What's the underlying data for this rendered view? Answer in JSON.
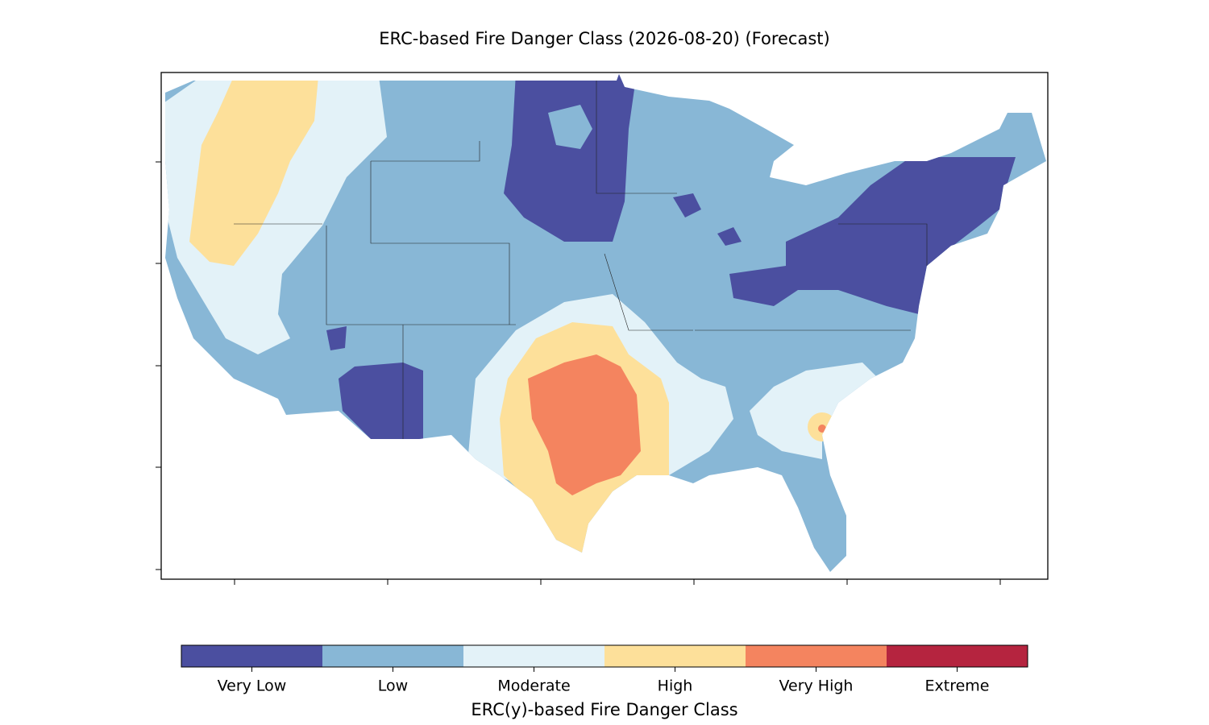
{
  "title": "ERC-based Fire Danger Class (2026-08-20) (Forecast)",
  "colorbar": {
    "label": "ERC(y)-based Fire Danger Class",
    "classes": [
      {
        "name": "Very Low",
        "color": "#4b4fa0"
      },
      {
        "name": "Low",
        "color": "#88b7d6"
      },
      {
        "name": "Moderate",
        "color": "#e3f2f8"
      },
      {
        "name": "High",
        "color": "#fde09a"
      },
      {
        "name": "Very High",
        "color": "#f4845f"
      },
      {
        "name": "Extreme",
        "color": "#b5243f"
      }
    ]
  }
}
